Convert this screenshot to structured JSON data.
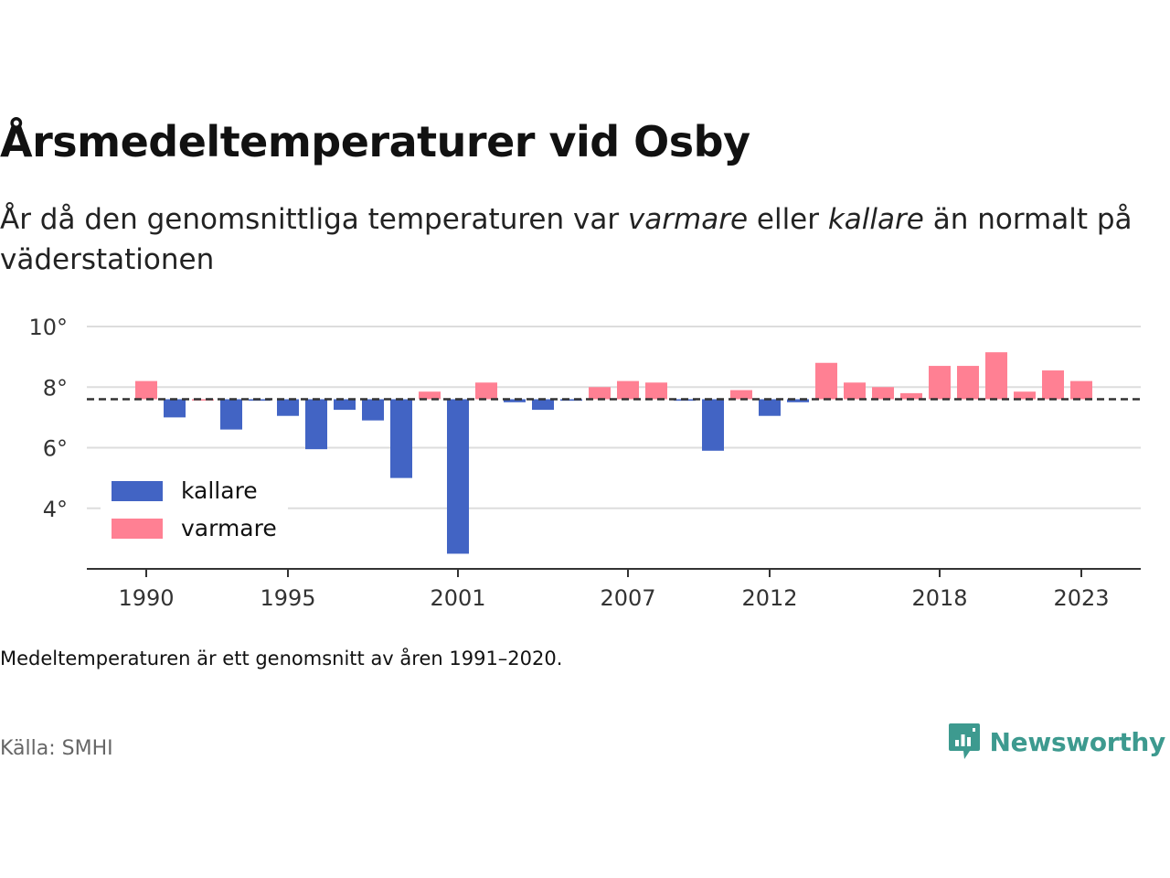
{
  "title": "Årsmedeltemperaturer vid Osby",
  "subtitle": {
    "prefix": "År då den genomsnittliga temperaturen var ",
    "warmer_word": "varmare",
    "middle": " eller ",
    "colder_word": "kallare",
    "suffix": " än normalt på väderstationen"
  },
  "note": "Medeltemperaturen är ett genomsnitt av åren 1991–2020.",
  "source": "Källa: SMHI",
  "brand": {
    "name": "Newsworthy",
    "icon": "newsworthy-logo-icon",
    "color": "#3d9a8f"
  },
  "colors": {
    "colder": "#4264c4",
    "warmer": "#ff8093",
    "grid": "#dddddd",
    "reference": "#333333"
  },
  "chart_data": {
    "type": "bar",
    "title": "",
    "xlabel": "",
    "ylabel": "",
    "ylim": [
      2.0,
      10.0
    ],
    "baseline": 7.6,
    "baseline_style": "dashed",
    "grid": true,
    "legend_position": "bottom-left",
    "y_ticks": [
      {
        "value": 4,
        "label": "4°"
      },
      {
        "value": 6,
        "label": "6°"
      },
      {
        "value": 8,
        "label": "8°"
      },
      {
        "value": 10,
        "label": "10°"
      }
    ],
    "x_ticks": [
      1990,
      1995,
      2001,
      2007,
      2012,
      2018,
      2023
    ],
    "legend": [
      {
        "key": "colder",
        "label": "kallare"
      },
      {
        "key": "warmer",
        "label": "varmare"
      }
    ],
    "years": [
      1990,
      1991,
      1992,
      1993,
      1994,
      1995,
      1996,
      1997,
      1998,
      1999,
      2000,
      2001,
      2002,
      2003,
      2004,
      2005,
      2006,
      2007,
      2008,
      2009,
      2010,
      2011,
      2012,
      2013,
      2014,
      2015,
      2016,
      2017,
      2018,
      2019,
      2020,
      2021,
      2022,
      2023
    ],
    "values": [
      8.2,
      7.0,
      7.6,
      6.6,
      7.55,
      7.05,
      5.95,
      7.25,
      6.9,
      5.0,
      7.85,
      2.5,
      8.15,
      7.5,
      7.25,
      7.55,
      8.0,
      8.2,
      8.15,
      7.55,
      5.9,
      7.9,
      7.05,
      7.5,
      8.8,
      8.15,
      8.0,
      7.8,
      8.7,
      8.7,
      9.15,
      7.85,
      8.55,
      8.2
    ]
  }
}
